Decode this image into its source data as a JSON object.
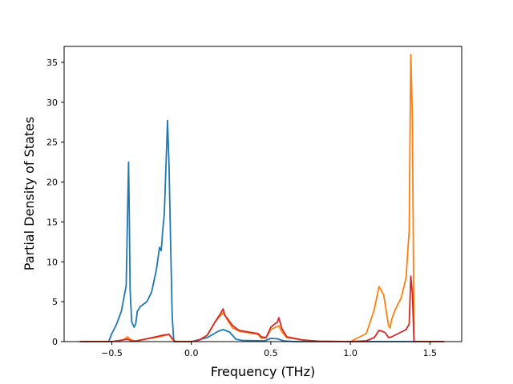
{
  "chart_data": {
    "type": "line",
    "title": "",
    "xlabel": "Frequency (THz)",
    "ylabel": "Partial Density of States",
    "xlim": [
      -0.8,
      1.7
    ],
    "ylim": [
      0,
      37
    ],
    "xticks": [
      -0.5,
      0.0,
      0.5,
      1.0,
      1.5
    ],
    "xtick_labels": [
      "−0.5",
      "0.0",
      "0.5",
      "1.0",
      "1.5"
    ],
    "yticks": [
      0,
      5,
      10,
      15,
      20,
      25,
      30,
      35
    ],
    "ytick_labels": [
      "0",
      "5",
      "10",
      "15",
      "20",
      "25",
      "30",
      "35"
    ],
    "grid": false,
    "legend": false,
    "series": [
      {
        "color": "#1f77b4",
        "x": [
          -0.7,
          -0.52,
          -0.5,
          -0.47,
          -0.44,
          -0.41,
          -0.395,
          -0.39,
          -0.385,
          -0.375,
          -0.36,
          -0.35,
          -0.34,
          -0.32,
          -0.28,
          -0.25,
          -0.22,
          -0.2,
          -0.19,
          -0.185,
          -0.18,
          -0.17,
          -0.15,
          -0.14,
          -0.13,
          -0.12,
          -0.11,
          0.0,
          0.1,
          0.17,
          0.2,
          0.24,
          0.28,
          0.32,
          0.46,
          0.5,
          0.54,
          0.58,
          0.65,
          1.0,
          1.3,
          1.4,
          1.59
        ],
        "y": [
          0,
          0,
          1.0,
          2.2,
          3.8,
          7.0,
          22.5,
          16.0,
          6.5,
          2.5,
          1.8,
          2.2,
          3.8,
          4.4,
          5.0,
          6.2,
          9.0,
          11.8,
          11.4,
          12.5,
          14.0,
          16.0,
          27.7,
          22.0,
          12.0,
          3.0,
          0,
          0,
          0.5,
          1.3,
          1.5,
          1.2,
          0.3,
          0.15,
          0.1,
          0.4,
          0.35,
          0.1,
          0,
          0,
          0,
          0,
          0
        ]
      },
      {
        "color": "#ff7f0e",
        "x": [
          -0.7,
          -0.5,
          -0.43,
          -0.4,
          -0.38,
          -0.35,
          -0.2,
          -0.18,
          -0.14,
          -0.12,
          -0.1,
          0.0,
          0.05,
          0.1,
          0.15,
          0.18,
          0.2,
          0.21,
          0.23,
          0.26,
          0.3,
          0.36,
          0.42,
          0.44,
          0.47,
          0.5,
          0.53,
          0.54,
          0.55,
          0.57,
          0.6,
          0.7,
          0.8,
          1.0,
          1.1,
          1.15,
          1.18,
          1.19,
          1.21,
          1.24,
          1.25,
          1.26,
          1.28,
          1.32,
          1.35,
          1.37,
          1.38,
          1.39,
          1.4,
          1.59
        ],
        "y": [
          0,
          0,
          0.2,
          0.6,
          0.2,
          0.1,
          0.6,
          0.7,
          0.9,
          0.3,
          0,
          0,
          0.2,
          0.8,
          2.5,
          3.2,
          3.6,
          3.3,
          2.6,
          1.7,
          1.3,
          1.1,
          0.9,
          0.4,
          0.5,
          1.5,
          1.8,
          1.9,
          2.0,
          1.2,
          0.5,
          0.2,
          0.05,
          0,
          1.0,
          4.0,
          6.9,
          6.6,
          5.8,
          2.0,
          1.7,
          2.8,
          3.9,
          5.5,
          8.0,
          14.0,
          36.0,
          28.0,
          0,
          0
        ]
      },
      {
        "color": "#d62728",
        "x": [
          -0.7,
          -0.5,
          -0.4,
          -0.38,
          -0.35,
          -0.2,
          -0.18,
          -0.14,
          -0.12,
          -0.1,
          0.0,
          0.05,
          0.1,
          0.15,
          0.18,
          0.2,
          0.21,
          0.23,
          0.26,
          0.3,
          0.36,
          0.42,
          0.44,
          0.47,
          0.5,
          0.53,
          0.54,
          0.55,
          0.57,
          0.6,
          0.7,
          0.8,
          1.0,
          1.1,
          1.15,
          1.18,
          1.2,
          1.22,
          1.24,
          1.26,
          1.3,
          1.35,
          1.37,
          1.38,
          1.39,
          1.4,
          1.59
        ],
        "y": [
          0,
          0,
          0.3,
          0.1,
          0.05,
          0.7,
          0.8,
          0.9,
          0.4,
          0,
          0,
          0.2,
          0.8,
          2.5,
          3.4,
          4.1,
          3.3,
          2.8,
          2.0,
          1.4,
          1.2,
          1.0,
          0.6,
          0.5,
          1.8,
          2.3,
          2.4,
          3.0,
          1.6,
          0.6,
          0.2,
          0.05,
          0,
          0.1,
          0.5,
          1.4,
          1.3,
          1.1,
          0.5,
          0.6,
          1.0,
          1.5,
          2.2,
          8.2,
          6.0,
          0,
          0
        ]
      }
    ]
  }
}
